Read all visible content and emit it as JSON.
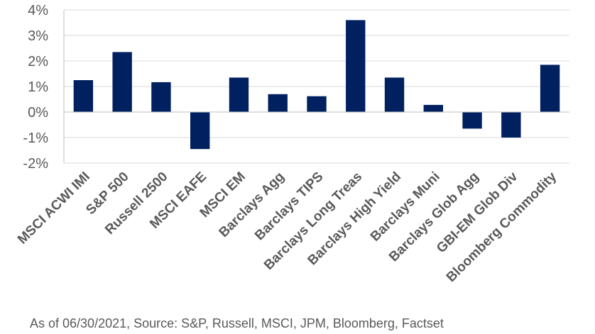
{
  "chart_data": {
    "type": "bar",
    "title": "",
    "xlabel": "",
    "ylabel": "",
    "categories": [
      "MSCI ACWI IMI",
      "S&P 500",
      "Russell 2500",
      "MSCI EAFE",
      "MSCI EM",
      "Barclays Agg",
      "Barclays TIPS",
      "Barclays Long Treas",
      "Barclays High Yield",
      "Barclays Muni",
      "Barclays Glob Agg",
      "GBI-EM Glob Div",
      "Bloomberg Commodity"
    ],
    "values": [
      1.25,
      2.35,
      1.17,
      -1.45,
      1.35,
      0.7,
      0.62,
      3.6,
      1.35,
      0.28,
      -0.65,
      -1.0,
      1.85
    ],
    "ylim": [
      -2,
      4
    ],
    "yticks": [
      -2,
      -1,
      0,
      1,
      2,
      3,
      4
    ],
    "ytick_labels": [
      "-2%",
      "-1%",
      "0%",
      "1%",
      "2%",
      "3%",
      "4%"
    ],
    "unit": "%",
    "bar_color": "#002060",
    "grid": true,
    "legend": "none"
  },
  "footnote": "As of 06/30/2021, Source: S&P, Russell, MSCI, JPM, Bloomberg, Factset"
}
